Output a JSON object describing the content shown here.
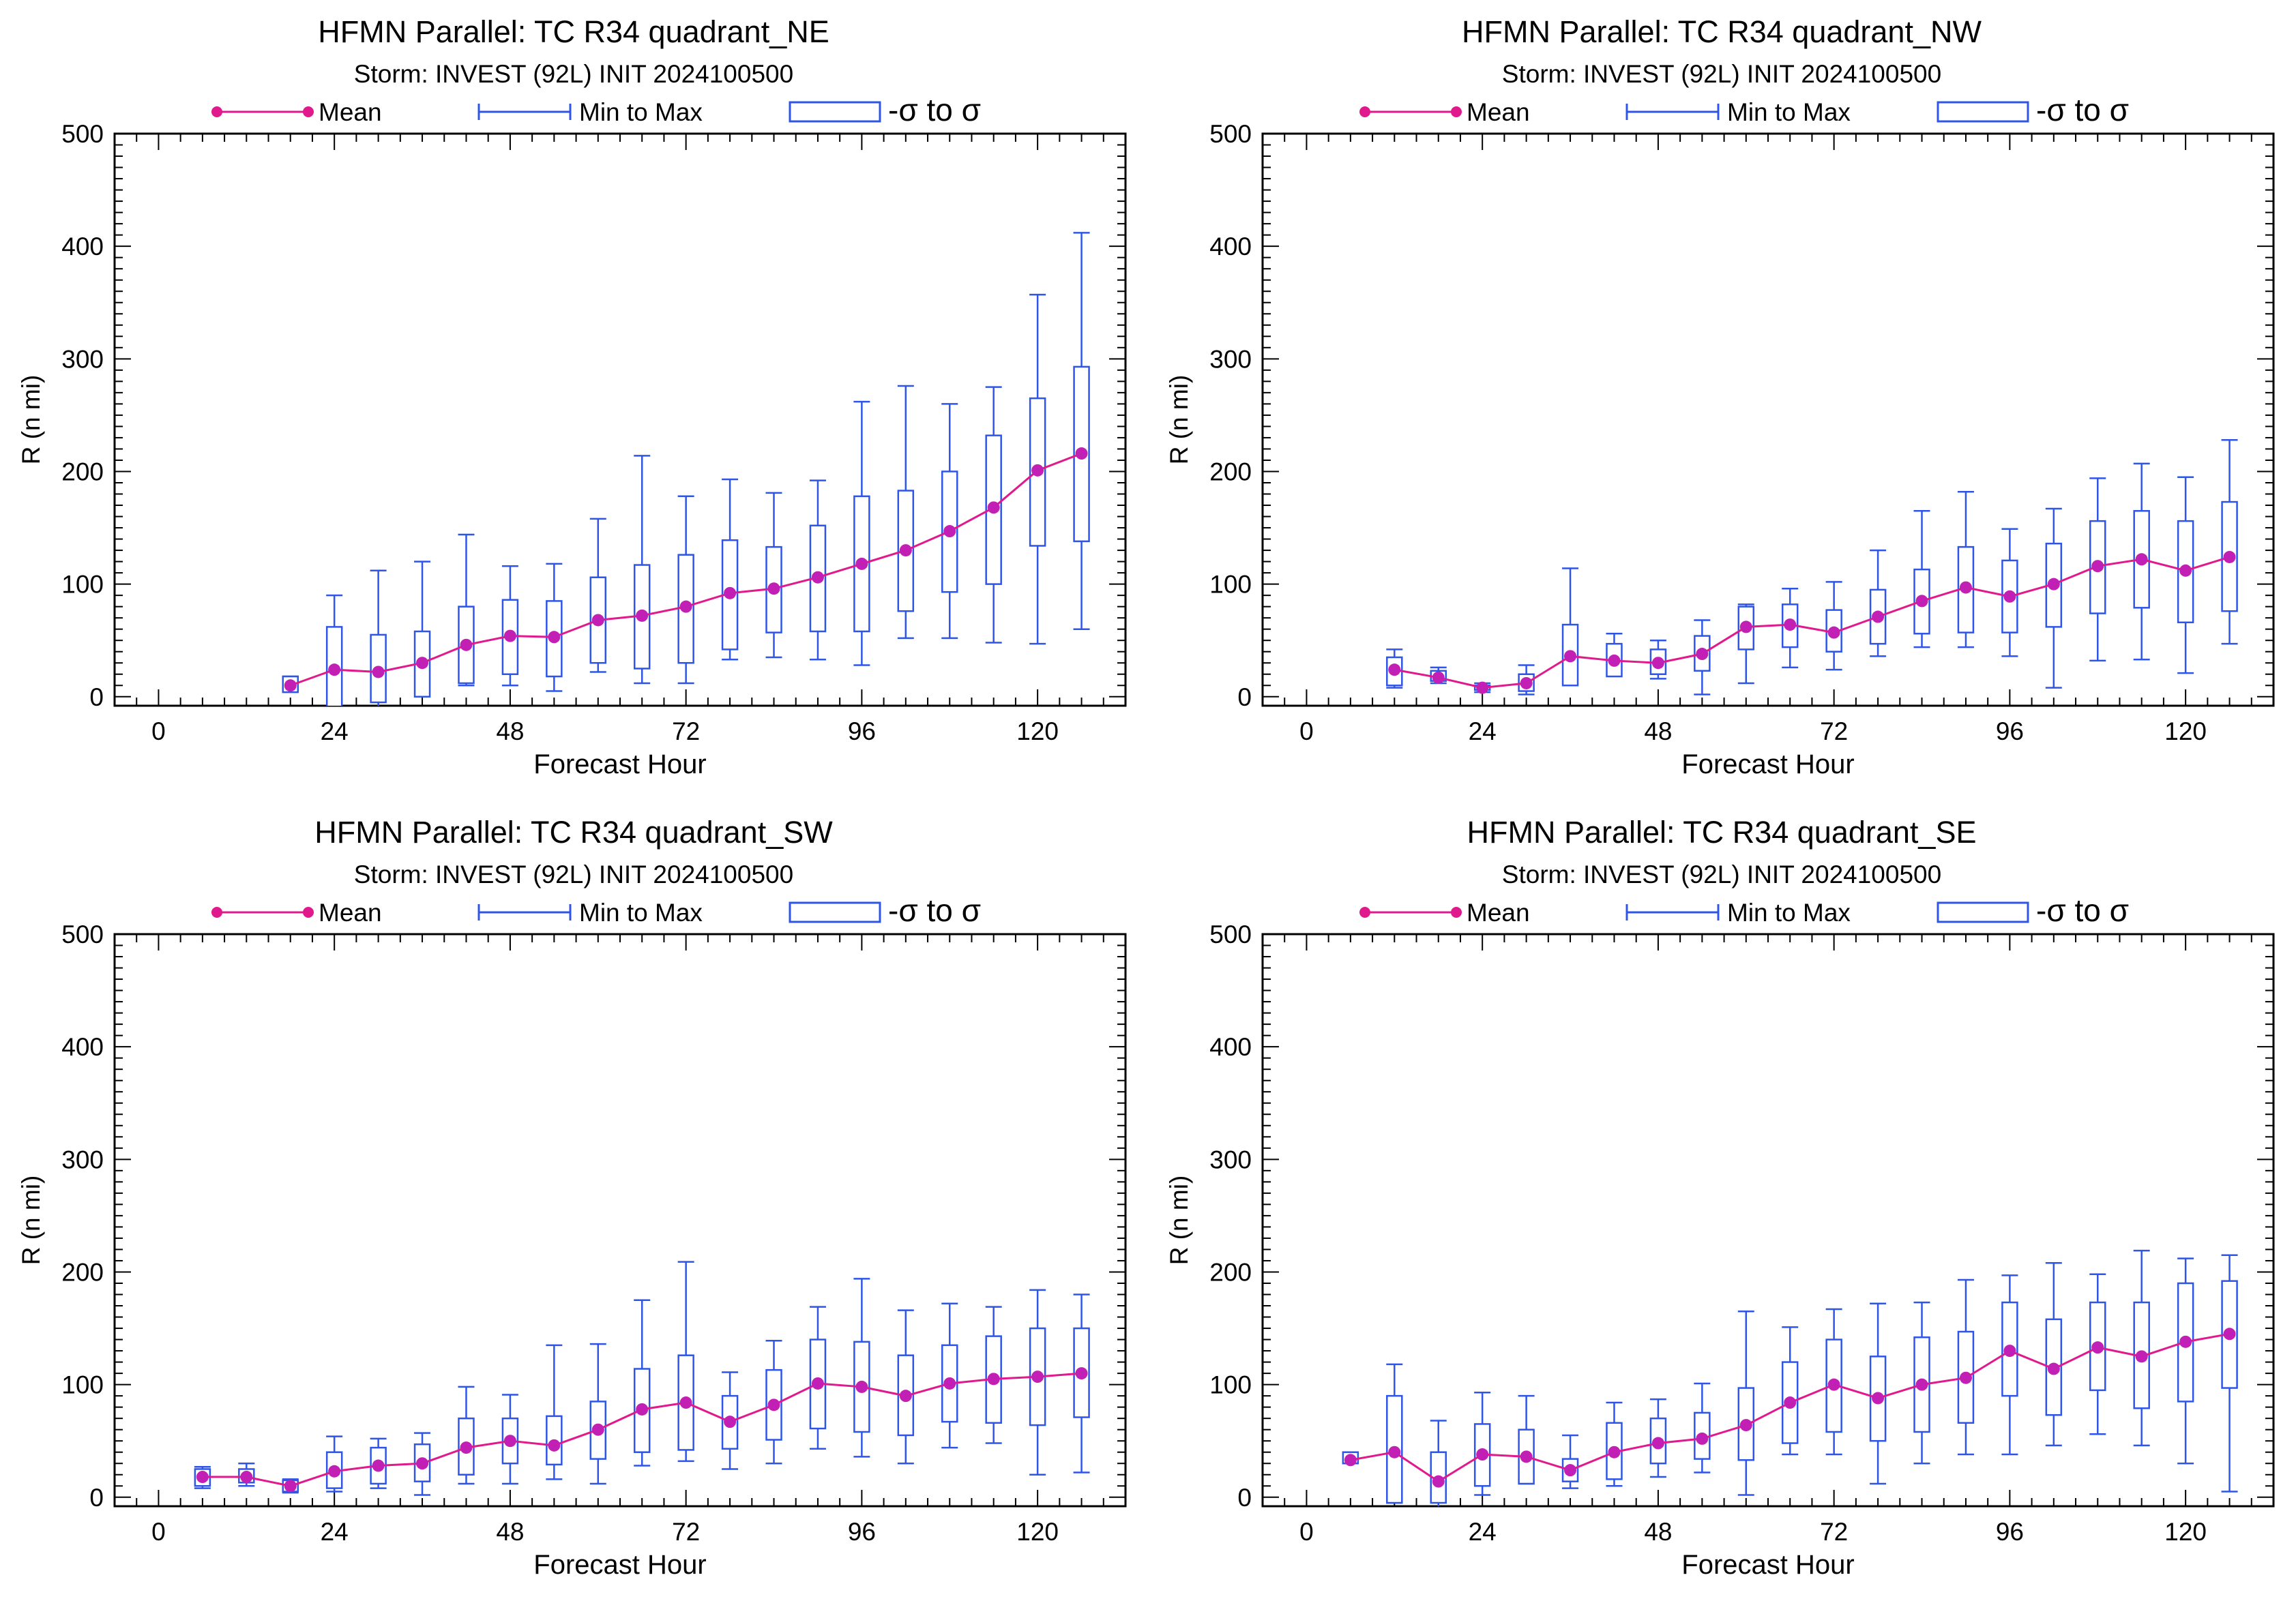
{
  "legend": {
    "mean": "Mean",
    "range": "Min to Max",
    "sigma": "-σ to σ"
  },
  "colors": {
    "mean": "#e0198c",
    "mean_marker": "#c21fb4",
    "box": "#2f55e8",
    "background": "#ffffff"
  },
  "chart_data": [
    {
      "type": "box",
      "title": "HFMN Parallel: TC  R34 quadrant_NE",
      "subtitle": "Storm: INVEST (92L) INIT 2024100500",
      "xlabel": "Forecast Hour",
      "ylabel": "R (n mi)",
      "xlim": [
        -6,
        132
      ],
      "ylim": [
        -8,
        500
      ],
      "xticks": [
        0,
        24,
        48,
        72,
        96,
        120
      ],
      "yticks": [
        0,
        100,
        200,
        300,
        400,
        500
      ],
      "x": [
        18,
        24,
        30,
        36,
        42,
        48,
        54,
        60,
        66,
        72,
        78,
        84,
        90,
        96,
        102,
        108,
        114,
        120,
        126
      ],
      "mean": [
        10,
        24,
        22,
        30,
        46,
        54,
        53,
        68,
        72,
        80,
        92,
        96,
        106,
        118,
        130,
        147,
        168,
        201,
        216
      ],
      "min": [
        5,
        -5,
        -10,
        2,
        10,
        10,
        5,
        22,
        12,
        12,
        33,
        35,
        33,
        28,
        52,
        52,
        48,
        47,
        60
      ],
      "max": [
        18,
        90,
        112,
        120,
        144,
        116,
        118,
        158,
        214,
        178,
        193,
        181,
        192,
        262,
        276,
        260,
        275,
        357,
        412
      ],
      "sigma_low": [
        4,
        -10,
        -5,
        0,
        12,
        20,
        18,
        30,
        25,
        30,
        42,
        57,
        58,
        58,
        76,
        93,
        100,
        134,
        138
      ],
      "sigma_high": [
        18,
        62,
        55,
        58,
        80,
        86,
        85,
        106,
        117,
        126,
        139,
        133,
        152,
        178,
        183,
        200,
        232,
        265,
        293
      ]
    },
    {
      "type": "box",
      "title": "HFMN Parallel: TC  R34 quadrant_NW",
      "subtitle": "Storm: INVEST (92L) INIT 2024100500",
      "xlabel": "Forecast Hour",
      "ylabel": "R (n mi)",
      "xlim": [
        -6,
        132
      ],
      "ylim": [
        -8,
        500
      ],
      "xticks": [
        0,
        24,
        48,
        72,
        96,
        120
      ],
      "yticks": [
        0,
        100,
        200,
        300,
        400,
        500
      ],
      "x": [
        12,
        18,
        24,
        30,
        36,
        42,
        48,
        54,
        60,
        66,
        72,
        78,
        84,
        90,
        96,
        102,
        108,
        114,
        120,
        126
      ],
      "mean": [
        24,
        17,
        8,
        12,
        36,
        32,
        30,
        38,
        62,
        64,
        57,
        71,
        85,
        97,
        89,
        100,
        116,
        122,
        112,
        124
      ],
      "min": [
        8,
        12,
        4,
        2,
        10,
        20,
        16,
        2,
        12,
        26,
        24,
        36,
        44,
        44,
        36,
        8,
        32,
        33,
        21,
        47
      ],
      "max": [
        42,
        26,
        12,
        28,
        114,
        56,
        50,
        68,
        82,
        96,
        102,
        130,
        165,
        182,
        149,
        167,
        194,
        207,
        195,
        228
      ],
      "sigma_low": [
        10,
        14,
        6,
        5,
        10,
        18,
        20,
        23,
        42,
        44,
        40,
        47,
        56,
        57,
        57,
        62,
        74,
        79,
        66,
        76
      ],
      "sigma_high": [
        35,
        23,
        10,
        20,
        64,
        47,
        42,
        54,
        80,
        82,
        77,
        95,
        113,
        133,
        121,
        136,
        156,
        165,
        156,
        173
      ]
    },
    {
      "type": "box",
      "title": "HFMN Parallel: TC  R34 quadrant_SW",
      "subtitle": "Storm: INVEST (92L) INIT 2024100500",
      "xlabel": "Forecast Hour",
      "ylabel": "R (n mi)",
      "xlim": [
        -6,
        132
      ],
      "ylim": [
        -8,
        500
      ],
      "xticks": [
        0,
        24,
        48,
        72,
        96,
        120
      ],
      "yticks": [
        0,
        100,
        200,
        300,
        400,
        500
      ],
      "x": [
        6,
        12,
        18,
        24,
        30,
        36,
        42,
        48,
        54,
        60,
        66,
        72,
        78,
        84,
        90,
        96,
        102,
        108,
        114,
        120,
        126
      ],
      "mean": [
        18,
        18,
        10,
        23,
        28,
        30,
        44,
        50,
        46,
        60,
        78,
        84,
        67,
        82,
        101,
        98,
        90,
        101,
        105,
        107,
        110
      ],
      "min": [
        8,
        10,
        4,
        5,
        8,
        2,
        12,
        12,
        16,
        12,
        28,
        32,
        25,
        30,
        43,
        36,
        30,
        44,
        48,
        20,
        22
      ],
      "max": [
        27,
        30,
        16,
        54,
        52,
        57,
        98,
        91,
        135,
        136,
        175,
        209,
        111,
        139,
        169,
        194,
        166,
        172,
        169,
        184,
        180
      ],
      "sigma_low": [
        10,
        13,
        5,
        8,
        12,
        14,
        20,
        30,
        29,
        34,
        40,
        42,
        43,
        51,
        61,
        58,
        55,
        67,
        66,
        64,
        71
      ],
      "sigma_high": [
        25,
        25,
        15,
        40,
        44,
        47,
        70,
        70,
        72,
        85,
        114,
        126,
        90,
        113,
        140,
        138,
        126,
        135,
        143,
        150,
        150
      ]
    },
    {
      "type": "box",
      "title": "HFMN Parallel: TC  R34 quadrant_SE",
      "subtitle": "Storm: INVEST (92L) INIT 2024100500",
      "xlabel": "Forecast Hour",
      "ylabel": "R (n mi)",
      "xlim": [
        -6,
        132
      ],
      "ylim": [
        -8,
        500
      ],
      "xticks": [
        0,
        24,
        48,
        72,
        96,
        120
      ],
      "yticks": [
        0,
        100,
        200,
        300,
        400,
        500
      ],
      "x": [
        6,
        12,
        18,
        24,
        30,
        36,
        42,
        48,
        54,
        60,
        66,
        72,
        78,
        84,
        90,
        96,
        102,
        108,
        114,
        120,
        126
      ],
      "mean": [
        33,
        40,
        14,
        38,
        36,
        24,
        40,
        48,
        52,
        64,
        84,
        100,
        88,
        100,
        106,
        130,
        114,
        133,
        125,
        138,
        145
      ],
      "min": [
        30,
        -5,
        -10,
        2,
        12,
        8,
        10,
        18,
        22,
        2,
        38,
        38,
        12,
        30,
        38,
        38,
        46,
        56,
        46,
        30,
        5
      ],
      "max": [
        40,
        118,
        68,
        93,
        90,
        55,
        84,
        87,
        101,
        165,
        151,
        167,
        172,
        173,
        193,
        197,
        208,
        198,
        219,
        212,
        215
      ],
      "sigma_low": [
        30,
        -5,
        -5,
        10,
        12,
        14,
        16,
        30,
        34,
        33,
        48,
        58,
        50,
        58,
        66,
        90,
        73,
        95,
        79,
        85,
        97
      ],
      "sigma_high": [
        40,
        90,
        40,
        65,
        60,
        34,
        66,
        70,
        75,
        97,
        120,
        140,
        125,
        142,
        147,
        173,
        158,
        173,
        173,
        190,
        192
      ]
    }
  ]
}
